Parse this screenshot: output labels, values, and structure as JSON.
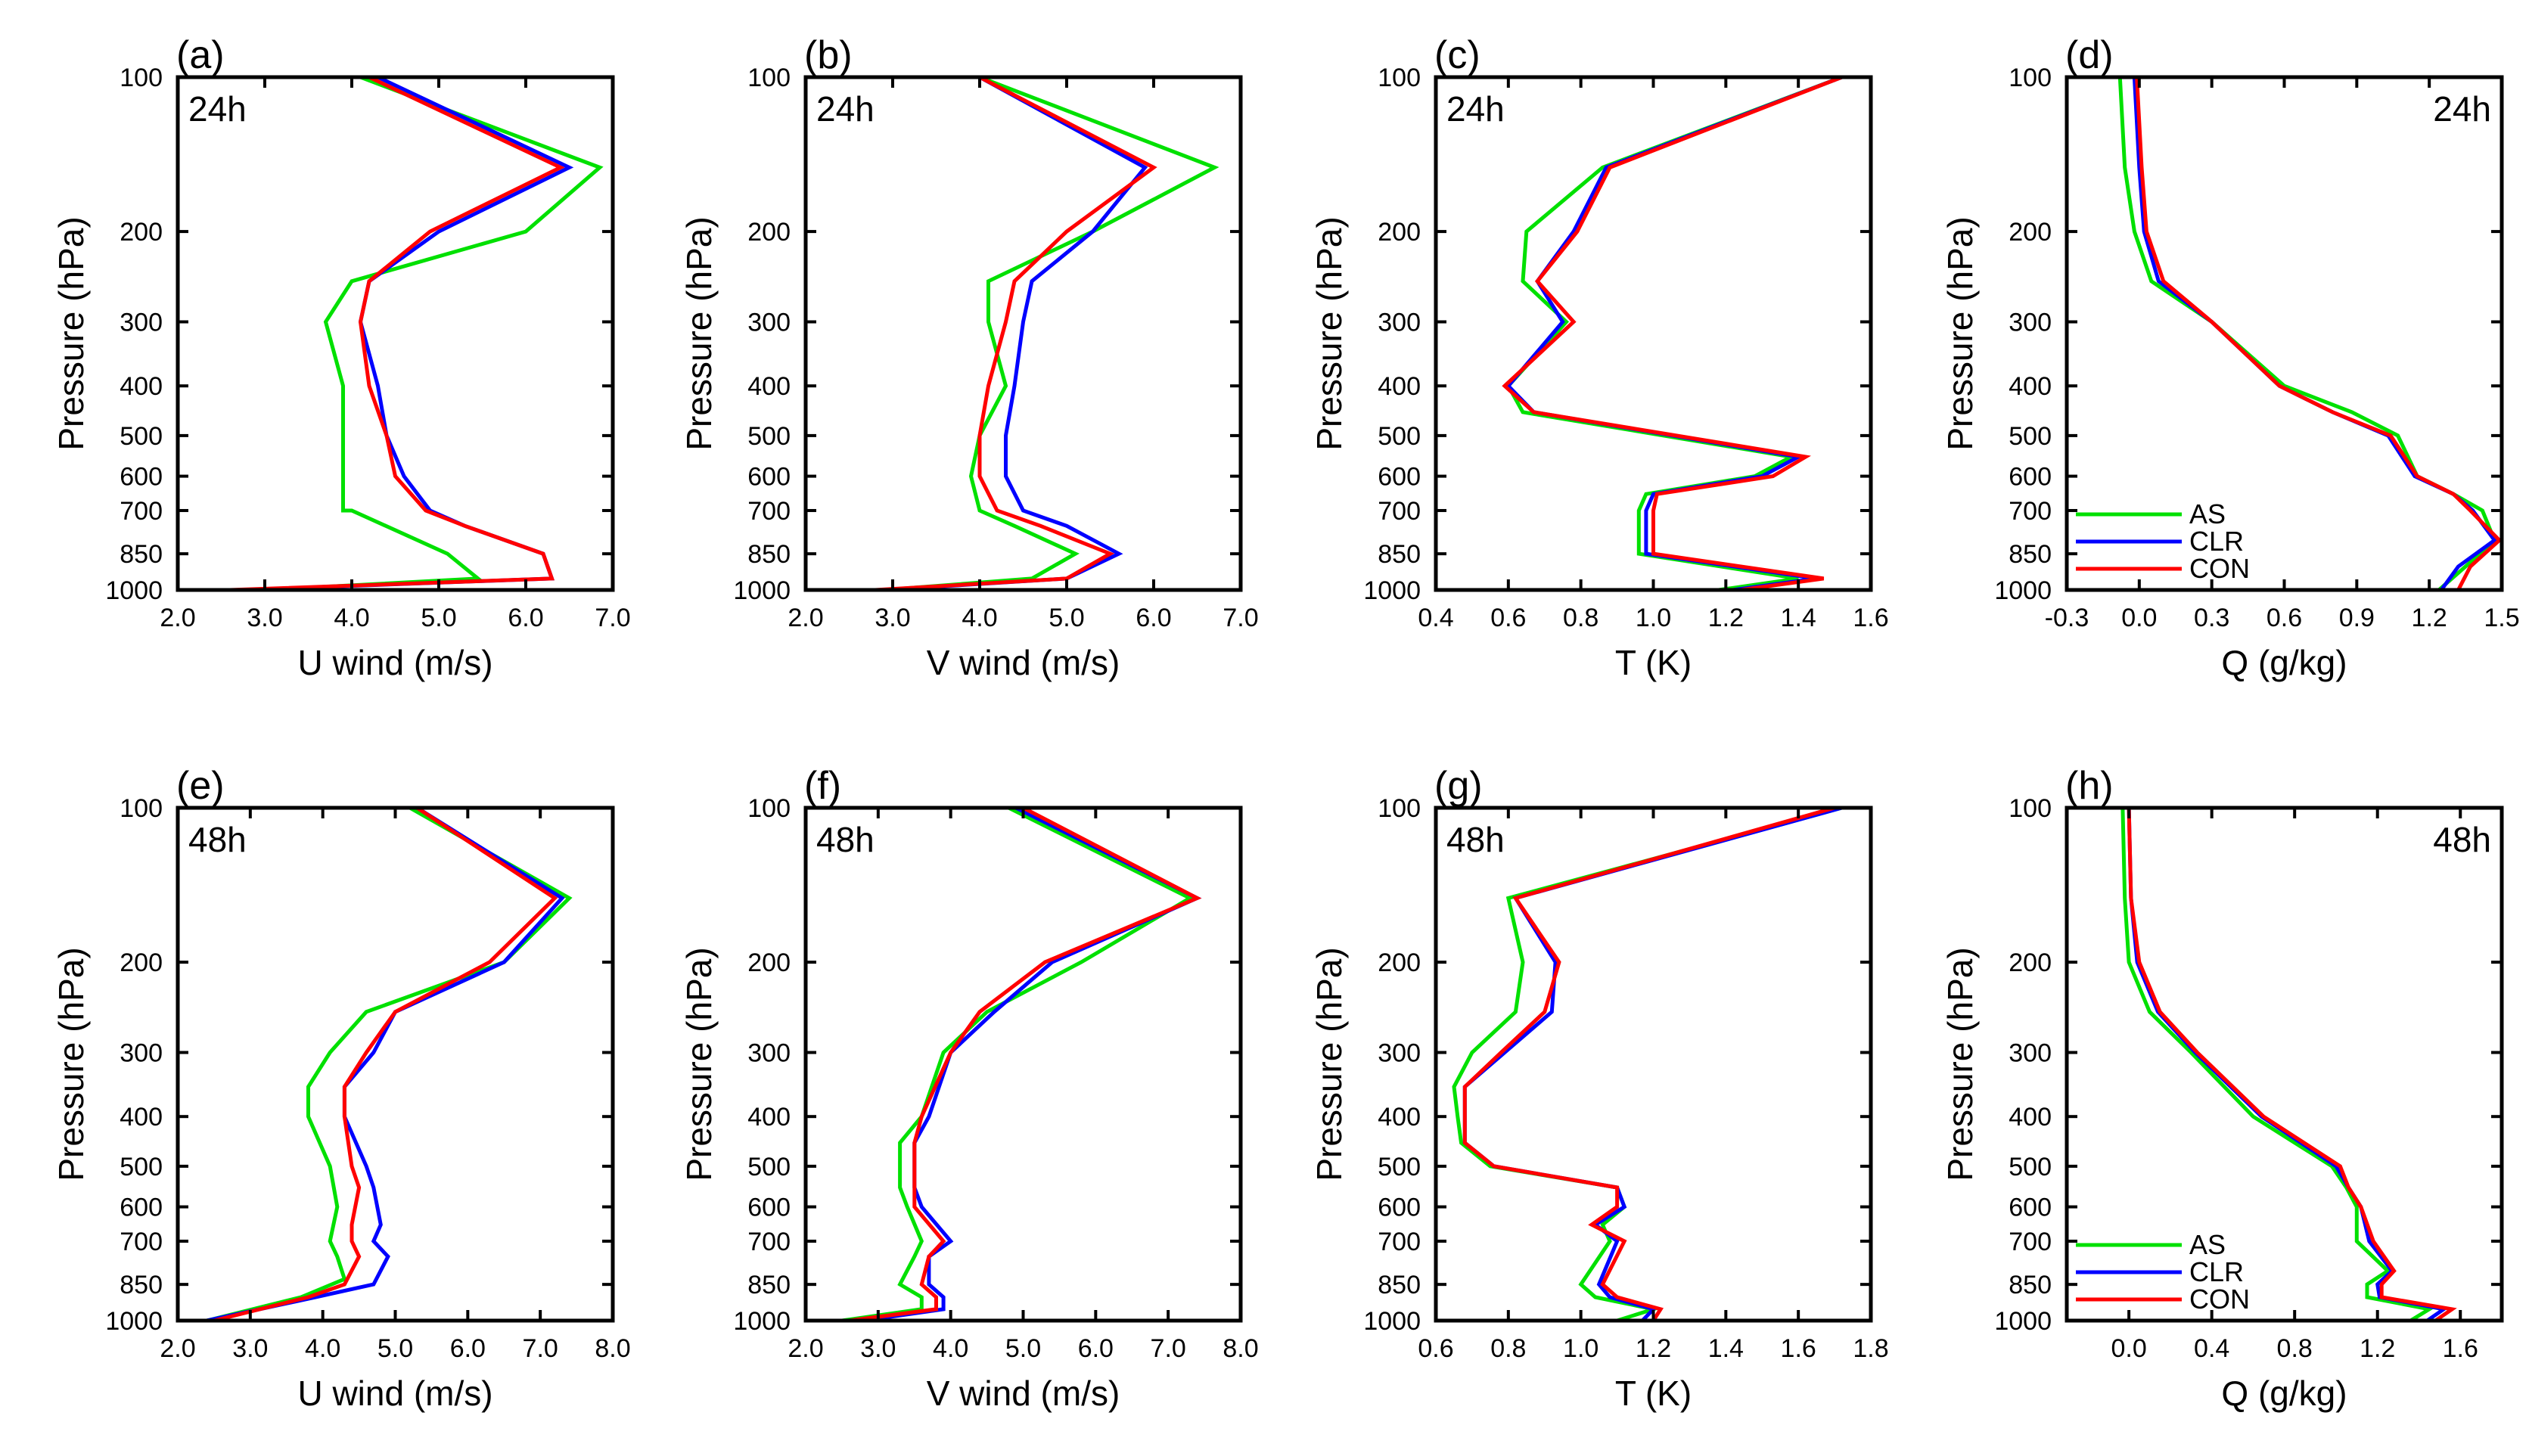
{
  "chart_data": [
    {
      "panel": "(a)",
      "time": "24h",
      "type": "line",
      "xlabel": "U wind (m/s)",
      "ylabel": "Pressure (hPa)",
      "xlim": [
        2.0,
        7.0
      ],
      "xticks": [
        "2.0",
        "3.0",
        "4.0",
        "5.0",
        "6.0",
        "7.0"
      ],
      "ylim": [
        100,
        1000
      ],
      "yticks": [
        "100",
        "200",
        "300",
        "400",
        "500",
        "600",
        "700",
        "850",
        "1000"
      ],
      "legend": false,
      "series": [
        {
          "name": "AS",
          "color": "#00e000",
          "x": [
            4.1,
            6.85,
            6.0,
            4.0,
            3.7,
            3.9,
            3.9,
            3.9,
            3.9,
            4.0,
            5.1,
            5.45,
            3.0
          ],
          "y": [
            100,
            150,
            200,
            250,
            300,
            400,
            500,
            600,
            700,
            700,
            850,
            950,
            1000
          ]
        },
        {
          "name": "CLR",
          "color": "#0000ff",
          "x": [
            4.3,
            6.5,
            5.0,
            4.2,
            4.1,
            4.3,
            4.4,
            4.6,
            4.9,
            5.3,
            6.2,
            6.3,
            2.7
          ],
          "y": [
            100,
            150,
            200,
            250,
            300,
            400,
            500,
            600,
            700,
            750,
            850,
            950,
            1000
          ]
        },
        {
          "name": "CON",
          "color": "#ff0000",
          "x": [
            4.2,
            6.4,
            4.9,
            4.2,
            4.1,
            4.2,
            4.4,
            4.5,
            4.85,
            5.3,
            6.2,
            6.3,
            2.6
          ],
          "y": [
            100,
            150,
            200,
            250,
            300,
            400,
            500,
            600,
            700,
            750,
            850,
            950,
            1000
          ]
        }
      ]
    },
    {
      "panel": "(b)",
      "time": "24h",
      "type": "line",
      "xlabel": "V wind (m/s)",
      "ylabel": "Pressure (hPa)",
      "xlim": [
        2.0,
        7.0
      ],
      "xticks": [
        "2.0",
        "3.0",
        "4.0",
        "5.0",
        "6.0",
        "7.0"
      ],
      "ylim": [
        100,
        1000
      ],
      "yticks": [
        "100",
        "200",
        "300",
        "400",
        "500",
        "600",
        "700",
        "850",
        "1000"
      ],
      "legend": false,
      "series": [
        {
          "name": "AS",
          "color": "#00e000",
          "x": [
            4.0,
            6.7,
            5.3,
            4.1,
            4.1,
            4.3,
            4.0,
            3.9,
            4.0,
            4.4,
            5.1,
            4.6,
            2.9
          ],
          "y": [
            100,
            150,
            200,
            250,
            300,
            400,
            500,
            600,
            700,
            750,
            850,
            950,
            1000
          ]
        },
        {
          "name": "CLR",
          "color": "#0000ff",
          "x": [
            4.0,
            5.9,
            5.3,
            4.6,
            4.5,
            4.4,
            4.3,
            4.3,
            4.5,
            5.0,
            5.6,
            5.0,
            2.9
          ],
          "y": [
            100,
            150,
            200,
            250,
            300,
            400,
            500,
            600,
            700,
            750,
            850,
            950,
            1000
          ]
        },
        {
          "name": "CON",
          "color": "#ff0000",
          "x": [
            4.0,
            6.0,
            5.0,
            4.4,
            4.3,
            4.1,
            4.0,
            4.0,
            4.2,
            4.7,
            5.5,
            5.0,
            2.8
          ],
          "y": [
            100,
            150,
            200,
            250,
            300,
            400,
            500,
            600,
            700,
            750,
            850,
            950,
            1000
          ]
        }
      ]
    },
    {
      "panel": "(c)",
      "time": "24h",
      "type": "line",
      "xlabel": "T (K)",
      "ylabel": "Pressure (hPa)",
      "xlim": [
        0.4,
        1.6
      ],
      "xticks": [
        "0.4",
        "0.6",
        "0.8",
        "1.0",
        "1.2",
        "1.4",
        "1.6"
      ],
      "ylim": [
        100,
        1000
      ],
      "yticks": [
        "100",
        "200",
        "300",
        "400",
        "500",
        "600",
        "700",
        "850",
        "1000"
      ],
      "legend": false,
      "series": [
        {
          "name": "AS",
          "color": "#00e000",
          "x": [
            1.52,
            0.86,
            0.65,
            0.64,
            0.76,
            0.6,
            0.64,
            1.38,
            1.28,
            0.98,
            0.96,
            0.96,
            1.4,
            1.18
          ],
          "y": [
            100,
            150,
            200,
            250,
            300,
            400,
            450,
            550,
            600,
            650,
            700,
            850,
            950,
            1000
          ]
        },
        {
          "name": "CLR",
          "color": "#0000ff",
          "x": [
            1.52,
            0.87,
            0.78,
            0.68,
            0.75,
            0.6,
            0.67,
            1.4,
            1.3,
            1.0,
            0.98,
            0.98,
            1.45,
            1.22
          ],
          "y": [
            100,
            150,
            200,
            250,
            300,
            400,
            450,
            550,
            600,
            650,
            700,
            850,
            950,
            1000
          ]
        },
        {
          "name": "CON",
          "color": "#ff0000",
          "x": [
            1.52,
            0.88,
            0.79,
            0.68,
            0.78,
            0.59,
            0.67,
            1.42,
            1.33,
            1.01,
            1.0,
            1.0,
            1.47,
            1.24
          ],
          "y": [
            100,
            150,
            200,
            250,
            300,
            400,
            450,
            550,
            600,
            650,
            700,
            850,
            950,
            1000
          ]
        }
      ]
    },
    {
      "panel": "(d)",
      "time": "24h",
      "type": "line",
      "xlabel": "Q (g/kg)",
      "ylabel": "Pressure (hPa)",
      "xlim": [
        -0.3,
        1.5
      ],
      "xticks": [
        "-0.3",
        "0.0",
        "0.3",
        "0.6",
        "0.9",
        "1.2",
        "1.5"
      ],
      "ylim": [
        100,
        1000
      ],
      "yticks": [
        "100",
        "200",
        "300",
        "400",
        "500",
        "600",
        "700",
        "850",
        "1000"
      ],
      "legend": true,
      "legend_placement": "bottom-left",
      "series": [
        {
          "name": "AS",
          "color": "#00e000",
          "x": [
            -0.08,
            -0.06,
            -0.02,
            0.05,
            0.3,
            0.6,
            0.88,
            1.07,
            1.15,
            1.3,
            1.42,
            1.47,
            1.35,
            1.24
          ],
          "y": [
            100,
            150,
            200,
            250,
            300,
            400,
            450,
            500,
            600,
            650,
            700,
            800,
            900,
            1000
          ]
        },
        {
          "name": "CLR",
          "color": "#0000ff",
          "x": [
            -0.02,
            0.0,
            0.02,
            0.08,
            0.3,
            0.58,
            0.8,
            1.03,
            1.14,
            1.3,
            1.38,
            1.47,
            1.32,
            1.25
          ],
          "y": [
            100,
            150,
            200,
            250,
            300,
            400,
            450,
            500,
            600,
            650,
            700,
            800,
            900,
            1000
          ]
        },
        {
          "name": "CON",
          "color": "#ff0000",
          "x": [
            -0.01,
            0.01,
            0.03,
            0.1,
            0.3,
            0.58,
            0.8,
            1.04,
            1.15,
            1.3,
            1.37,
            1.49,
            1.37,
            1.32
          ],
          "y": [
            100,
            150,
            200,
            250,
            300,
            400,
            450,
            500,
            600,
            650,
            700,
            800,
            900,
            1000
          ]
        }
      ]
    },
    {
      "panel": "(e)",
      "time": "48h",
      "type": "line",
      "xlabel": "U wind (m/s)",
      "ylabel": "Pressure (hPa)",
      "xlim": [
        2.0,
        8.0
      ],
      "xticks": [
        "2.0",
        "3.0",
        "4.0",
        "5.0",
        "6.0",
        "7.0",
        "8.0"
      ],
      "ylim": [
        100,
        1000
      ],
      "yticks": [
        "100",
        "200",
        "300",
        "400",
        "500",
        "600",
        "700",
        "850",
        "1000"
      ],
      "legend": false,
      "series": [
        {
          "name": "AS",
          "color": "#00e000",
          "x": [
            5.2,
            7.4,
            6.5,
            4.6,
            4.1,
            3.8,
            3.8,
            4.1,
            4.2,
            4.1,
            4.2,
            4.3,
            3.7,
            2.4
          ],
          "y": [
            100,
            150,
            200,
            250,
            300,
            350,
            400,
            500,
            600,
            700,
            750,
            830,
            900,
            1000
          ]
        },
        {
          "name": "CLR",
          "color": "#0000ff",
          "x": [
            5.3,
            7.3,
            6.5,
            5.0,
            4.7,
            4.3,
            4.3,
            4.6,
            4.7,
            4.8,
            4.7,
            4.9,
            4.7,
            3.9,
            2.4
          ],
          "y": [
            100,
            150,
            200,
            250,
            300,
            350,
            400,
            500,
            550,
            650,
            700,
            750,
            850,
            900,
            1000
          ]
        },
        {
          "name": "CON",
          "color": "#ff0000",
          "x": [
            5.3,
            7.2,
            6.3,
            5.0,
            4.6,
            4.3,
            4.3,
            4.4,
            4.5,
            4.4,
            4.4,
            4.5,
            4.3,
            3.8,
            2.5
          ],
          "y": [
            100,
            150,
            200,
            250,
            300,
            350,
            400,
            500,
            550,
            650,
            700,
            750,
            850,
            900,
            1000
          ]
        }
      ]
    },
    {
      "panel": "(f)",
      "time": "48h",
      "type": "line",
      "xlabel": "V wind (m/s)",
      "ylabel": "Pressure (hPa)",
      "xlim": [
        2.0,
        8.0
      ],
      "xticks": [
        "2.0",
        "3.0",
        "4.0",
        "5.0",
        "6.0",
        "7.0",
        "8.0"
      ],
      "ylim": [
        100,
        1000
      ],
      "yticks": [
        "100",
        "200",
        "300",
        "400",
        "500",
        "600",
        "700",
        "850",
        "1000"
      ],
      "legend": false,
      "series": [
        {
          "name": "AS",
          "color": "#00e000",
          "x": [
            4.8,
            7.3,
            5.8,
            4.5,
            3.9,
            3.6,
            3.3,
            3.3,
            3.4,
            3.6,
            3.5,
            3.3,
            3.6,
            3.6,
            2.5
          ],
          "y": [
            100,
            150,
            200,
            250,
            300,
            400,
            450,
            550,
            600,
            700,
            750,
            850,
            900,
            950,
            1000
          ]
        },
        {
          "name": "CLR",
          "color": "#0000ff",
          "x": [
            4.9,
            7.4,
            5.4,
            4.6,
            4.0,
            3.7,
            3.5,
            3.5,
            3.6,
            4.0,
            3.7,
            3.7,
            3.9,
            3.9,
            2.8
          ],
          "y": [
            100,
            150,
            200,
            250,
            300,
            400,
            450,
            550,
            600,
            700,
            750,
            850,
            900,
            950,
            1000
          ]
        },
        {
          "name": "CON",
          "color": "#ff0000",
          "x": [
            5.0,
            7.4,
            5.3,
            4.4,
            4.0,
            3.6,
            3.5,
            3.5,
            3.5,
            3.9,
            3.7,
            3.6,
            3.8,
            3.8,
            2.6
          ],
          "y": [
            100,
            150,
            200,
            250,
            300,
            400,
            450,
            550,
            600,
            700,
            750,
            850,
            900,
            950,
            1000
          ]
        }
      ]
    },
    {
      "panel": "(g)",
      "time": "48h",
      "type": "line",
      "xlabel": "T (K)",
      "ylabel": "Pressure (hPa)",
      "xlim": [
        0.6,
        1.8
      ],
      "xticks": [
        "0.6",
        "0.8",
        "1.0",
        "1.2",
        "1.4",
        "1.6",
        "1.8"
      ],
      "ylim": [
        100,
        1000
      ],
      "yticks": [
        "100",
        "200",
        "300",
        "400",
        "500",
        "600",
        "700",
        "850",
        "1000"
      ],
      "legend": false,
      "series": [
        {
          "name": "AS",
          "color": "#00e000",
          "x": [
            1.72,
            0.8,
            0.84,
            0.82,
            0.7,
            0.65,
            0.66,
            0.67,
            0.75,
            1.1,
            1.12,
            1.06,
            1.08,
            1.0,
            1.04,
            1.2,
            1.1
          ],
          "y": [
            100,
            150,
            200,
            250,
            300,
            350,
            400,
            450,
            500,
            550,
            600,
            650,
            700,
            850,
            900,
            950,
            1000
          ]
        },
        {
          "name": "CLR",
          "color": "#0000ff",
          "x": [
            1.72,
            0.82,
            0.93,
            0.92,
            0.79,
            0.68,
            0.68,
            0.68,
            0.76,
            1.1,
            1.12,
            1.04,
            1.1,
            1.05,
            1.08,
            1.2,
            1.17
          ],
          "y": [
            100,
            150,
            200,
            250,
            300,
            350,
            400,
            450,
            500,
            550,
            600,
            650,
            700,
            850,
            900,
            950,
            1000
          ]
        },
        {
          "name": "CON",
          "color": "#ff0000",
          "x": [
            1.7,
            0.82,
            0.94,
            0.9,
            0.78,
            0.68,
            0.68,
            0.68,
            0.76,
            1.1,
            1.1,
            1.03,
            1.12,
            1.06,
            1.1,
            1.22,
            1.2
          ],
          "y": [
            100,
            150,
            200,
            250,
            300,
            350,
            400,
            450,
            500,
            550,
            600,
            650,
            700,
            850,
            900,
            950,
            1000
          ]
        }
      ]
    },
    {
      "panel": "(h)",
      "time": "48h",
      "type": "line",
      "xlabel": "Q (g/kg)",
      "ylabel": "Pressure (hPa)",
      "xlim": [
        -0.3,
        1.8
      ],
      "xticks": [
        "0.0",
        "0.4",
        "0.8",
        "1.2",
        "1.6"
      ],
      "ylim": [
        100,
        1000
      ],
      "yticks": [
        "100",
        "200",
        "300",
        "400",
        "500",
        "600",
        "700",
        "850",
        "1000"
      ],
      "legend": true,
      "legend_placement": "bottom-left",
      "series": [
        {
          "name": "AS",
          "color": "#00e000",
          "x": [
            -0.03,
            -0.02,
            0.0,
            0.1,
            0.3,
            0.6,
            0.98,
            1.05,
            1.1,
            1.1,
            1.25,
            1.15,
            1.15,
            1.45,
            1.36
          ],
          "y": [
            100,
            150,
            200,
            250,
            300,
            400,
            500,
            550,
            600,
            700,
            800,
            850,
            900,
            950,
            1000
          ]
        },
        {
          "name": "CLR",
          "color": "#0000ff",
          "x": [
            0.0,
            0.01,
            0.04,
            0.14,
            0.32,
            0.64,
            1.0,
            1.06,
            1.12,
            1.16,
            1.27,
            1.2,
            1.21,
            1.52,
            1.44
          ],
          "y": [
            100,
            150,
            200,
            250,
            300,
            400,
            500,
            550,
            600,
            700,
            800,
            850,
            900,
            950,
            1000
          ]
        },
        {
          "name": "CON",
          "color": "#ff0000",
          "x": [
            0.0,
            0.01,
            0.05,
            0.15,
            0.33,
            0.65,
            1.02,
            1.06,
            1.12,
            1.18,
            1.28,
            1.22,
            1.22,
            1.56,
            1.48
          ],
          "y": [
            100,
            150,
            200,
            250,
            300,
            400,
            500,
            550,
            600,
            700,
            800,
            850,
            900,
            950,
            1000
          ]
        }
      ]
    }
  ]
}
